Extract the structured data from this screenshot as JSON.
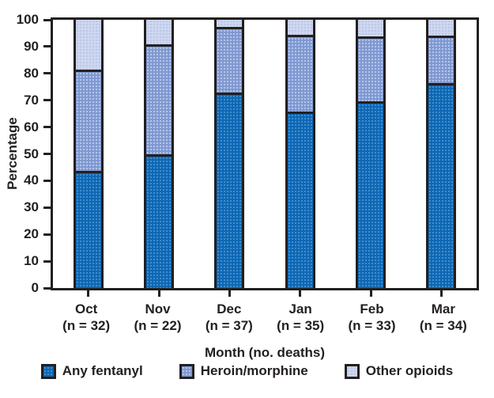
{
  "chart_data": {
    "type": "bar",
    "stacked": true,
    "orientation": "vertical",
    "title": "",
    "xlabel": "Month (no. deaths)",
    "ylabel": "Percentage",
    "ylim": [
      0,
      100
    ],
    "yticks": [
      0,
      10,
      20,
      30,
      40,
      50,
      60,
      70,
      80,
      90,
      100
    ],
    "grid": false,
    "legend_position": "bottom",
    "categories": [
      "Oct",
      "Nov",
      "Dec",
      "Jan",
      "Feb",
      "Mar"
    ],
    "category_sublabels": [
      "(n = 32)",
      "(n = 22)",
      "(n = 37)",
      "(n = 35)",
      "(n = 33)",
      "(n = 34)"
    ],
    "series": [
      {
        "name": "Any fentanyl",
        "color": "#0c66b3",
        "values": [
          43.8,
          50.0,
          73.0,
          65.7,
          69.7,
          76.5
        ]
      },
      {
        "name": "Heroin/morphine",
        "color": "#7e97d0",
        "values": [
          37.5,
          40.9,
          24.3,
          28.6,
          24.2,
          17.6
        ]
      },
      {
        "name": "Other opioids",
        "color": "#cfd7ef",
        "values": [
          18.7,
          9.1,
          2.7,
          5.7,
          6.1,
          5.9
        ]
      }
    ],
    "axis_color": "#231f20"
  }
}
